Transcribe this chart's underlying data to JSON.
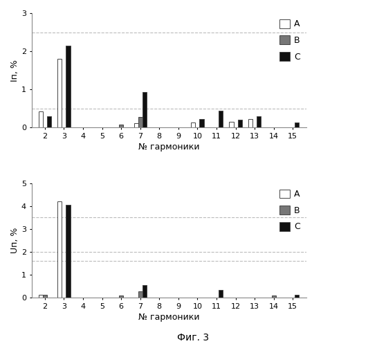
{
  "harmonics": [
    2,
    3,
    4,
    5,
    6,
    7,
    8,
    9,
    10,
    11,
    12,
    13,
    14,
    15
  ],
  "top": {
    "ylabel": "Iп, %",
    "xlabel": "№ гармоники",
    "ylim": [
      0,
      3
    ],
    "yticks": [
      0,
      1,
      2,
      3
    ],
    "hlines": [
      2.5,
      0.5
    ],
    "A": [
      0.42,
      1.8,
      0.0,
      0.0,
      0.0,
      0.12,
      0.0,
      0.0,
      0.13,
      0.0,
      0.15,
      0.22,
      0.0,
      0.0
    ],
    "B": [
      0.0,
      0.0,
      0.0,
      0.0,
      0.08,
      0.28,
      0.0,
      0.0,
      0.0,
      0.0,
      0.0,
      0.0,
      0.0,
      0.0
    ],
    "C": [
      0.3,
      2.15,
      0.0,
      0.0,
      0.0,
      0.93,
      0.0,
      0.0,
      0.22,
      0.45,
      0.2,
      0.3,
      0.0,
      0.13
    ]
  },
  "bottom": {
    "ylabel": "Uп, %",
    "xlabel": "№ гармоники",
    "ylim": [
      0,
      5
    ],
    "yticks": [
      0,
      1,
      2,
      3,
      4,
      5
    ],
    "hlines": [
      3.5,
      2.0,
      1.6
    ],
    "A": [
      0.13,
      4.2,
      0.0,
      0.0,
      0.0,
      0.0,
      0.0,
      0.0,
      0.0,
      0.0,
      0.0,
      0.0,
      0.0,
      0.0
    ],
    "B": [
      0.13,
      0.0,
      0.0,
      0.0,
      0.1,
      0.28,
      0.0,
      0.0,
      0.0,
      0.0,
      0.0,
      0.0,
      0.1,
      0.0
    ],
    "C": [
      0.0,
      4.05,
      0.0,
      0.0,
      0.0,
      0.55,
      0.0,
      0.0,
      0.0,
      0.35,
      0.0,
      0.0,
      0.0,
      0.13
    ]
  },
  "colors": {
    "A": "#ffffff",
    "B": "#777777",
    "C": "#111111"
  },
  "bar_width": 0.22,
  "edgecolor": "#444444",
  "hline_color": "#bbbbbb",
  "hline_style": "--",
  "fig_caption": "Фиг. 3",
  "background_color": "#ffffff"
}
